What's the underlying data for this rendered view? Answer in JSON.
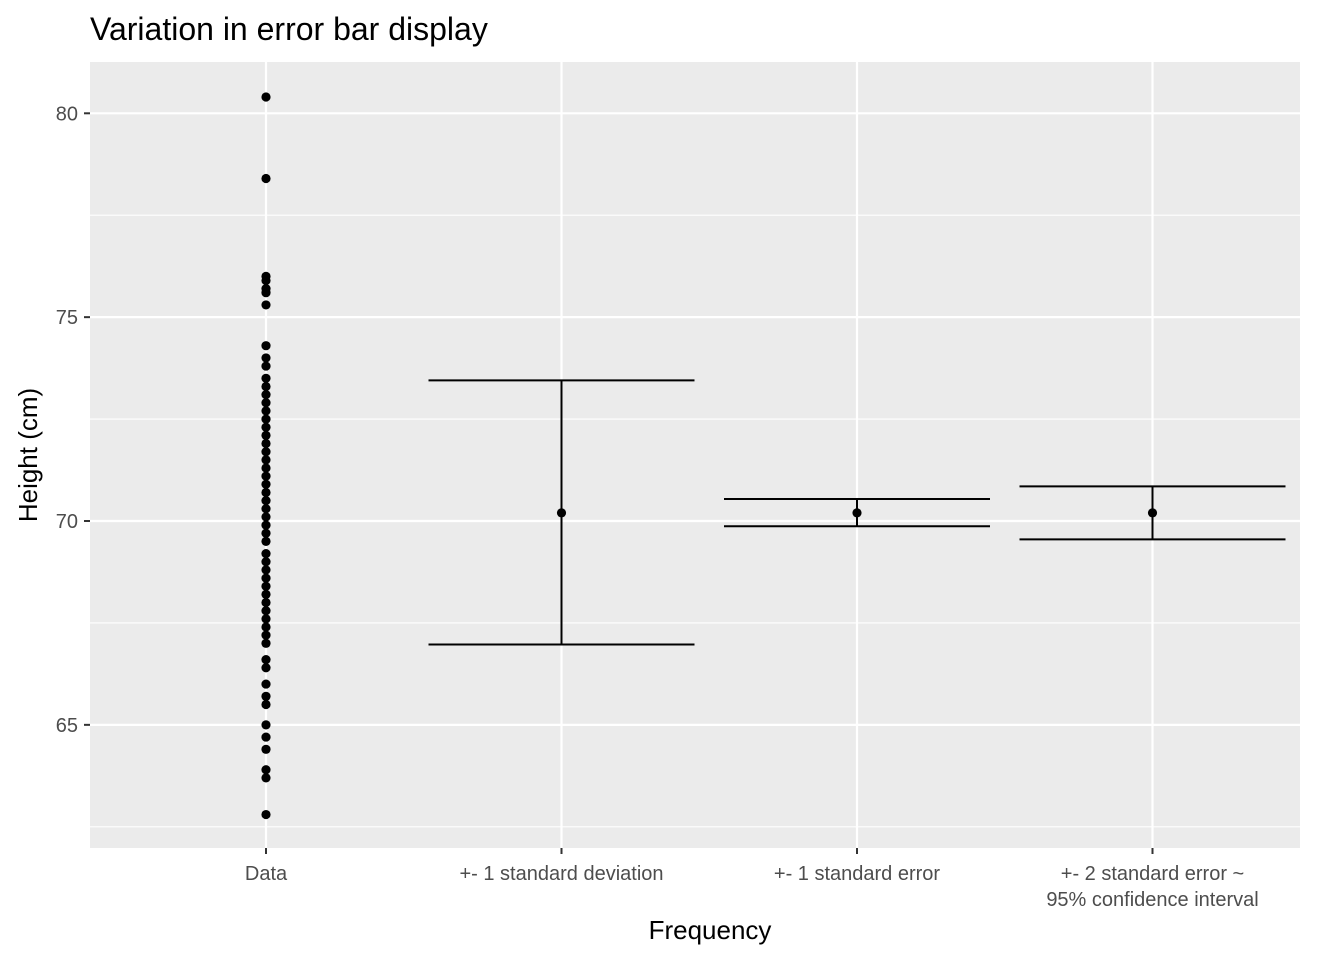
{
  "chart_data": {
    "type": "scatter",
    "title": "Variation in error bar display",
    "xlabel": "Frequency",
    "ylabel": "Height (cm)",
    "categories": [
      "Data",
      "+- 1 standard deviation",
      "+- 1 standard error",
      "+- 2 standard error ~\n95% confidence interval"
    ],
    "yticks": [
      65,
      70,
      75,
      80
    ],
    "ylim": [
      62.5,
      81.8
    ],
    "grid": true,
    "series": [
      {
        "category": "Data",
        "values": [
          80.4,
          78.4,
          76.0,
          75.9,
          75.7,
          75.6,
          75.3,
          74.3,
          74.0,
          73.8,
          73.5,
          73.3,
          73.1,
          72.9,
          72.7,
          72.5,
          72.3,
          72.1,
          71.9,
          71.7,
          71.5,
          71.3,
          71.1,
          70.9,
          70.7,
          70.5,
          70.3,
          70.1,
          69.9,
          69.7,
          69.5,
          69.2,
          69.0,
          68.8,
          68.6,
          68.4,
          68.2,
          68.0,
          67.8,
          67.6,
          67.4,
          67.2,
          67.0,
          66.6,
          66.4,
          66.0,
          65.7,
          65.5,
          65.0,
          64.7,
          64.4,
          63.9,
          63.7,
          62.8
        ]
      },
      {
        "category": "+- 1 standard deviation",
        "mean": 70.2,
        "lower": 66.97,
        "upper": 73.45
      },
      {
        "category": "+- 1 standard error",
        "mean": 70.2,
        "lower": 69.87,
        "upper": 70.54
      },
      {
        "category": "+- 2 standard error ~\n95% confidence interval",
        "mean": 70.2,
        "lower": 69.55,
        "upper": 70.85
      }
    ]
  }
}
